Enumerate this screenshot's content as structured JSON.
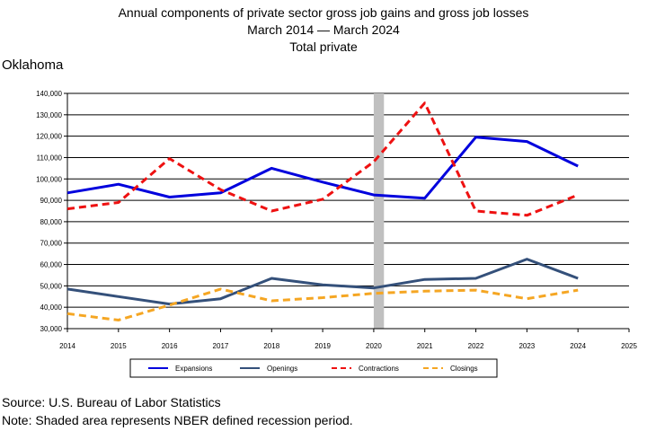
{
  "title": {
    "line1": "Annual components of private sector gross job gains and gross job losses",
    "line2": "March 2014 — March 2024",
    "line3": "Total private"
  },
  "region_label": "Oklahoma",
  "footer": {
    "source": "Source: U.S. Bureau of Labor Statistics",
    "note": "Note: Shaded area represents NBER defined recession period."
  },
  "chart_data": {
    "type": "line",
    "title": "Annual components of private sector gross job gains and gross job losses",
    "x": [
      2014,
      2015,
      2016,
      2017,
      2018,
      2019,
      2020,
      2021,
      2022,
      2023,
      2024
    ],
    "xlim": [
      2014,
      2025
    ],
    "x_ticks": [
      2014,
      2015,
      2016,
      2017,
      2018,
      2019,
      2020,
      2021,
      2022,
      2023,
      2024,
      2025
    ],
    "ylim": [
      30000,
      140000
    ],
    "y_ticks": [
      30000,
      40000,
      50000,
      60000,
      70000,
      80000,
      90000,
      100000,
      110000,
      120000,
      130000,
      140000
    ],
    "y_tick_labels": [
      "30,000",
      "40,000",
      "50,000",
      "60,000",
      "70,000",
      "80,000",
      "90,000",
      "100,000",
      "110,000",
      "120,000",
      "130,000",
      "140,000"
    ],
    "grid": "horizontal",
    "recession_shading": {
      "from": 2020.0,
      "to": 2020.2,
      "color": "#c0c0c0"
    },
    "legend_position": "bottom",
    "series": [
      {
        "name": "Expansions",
        "color": "#0000dd",
        "style": "solid",
        "width": 3,
        "values": [
          93500,
          97500,
          91500,
          93500,
          105000,
          98500,
          92500,
          91000,
          119500,
          117500,
          106000
        ]
      },
      {
        "name": "Openings",
        "color": "#34507a",
        "style": "solid",
        "width": 3,
        "values": [
          48500,
          45000,
          41500,
          44000,
          53500,
          50500,
          49000,
          53000,
          53500,
          62500,
          53500
        ]
      },
      {
        "name": "Contractions",
        "color": "#ee1111",
        "style": "dashed",
        "width": 3,
        "values": [
          86000,
          89000,
          109500,
          95000,
          85000,
          90500,
          108000,
          135500,
          85000,
          83000,
          92500
        ]
      },
      {
        "name": "Closings",
        "color": "#f5a623",
        "style": "dashed",
        "width": 3,
        "values": [
          37000,
          34000,
          41000,
          48500,
          43000,
          44500,
          46500,
          47500,
          48000,
          44000,
          48000
        ]
      }
    ]
  }
}
